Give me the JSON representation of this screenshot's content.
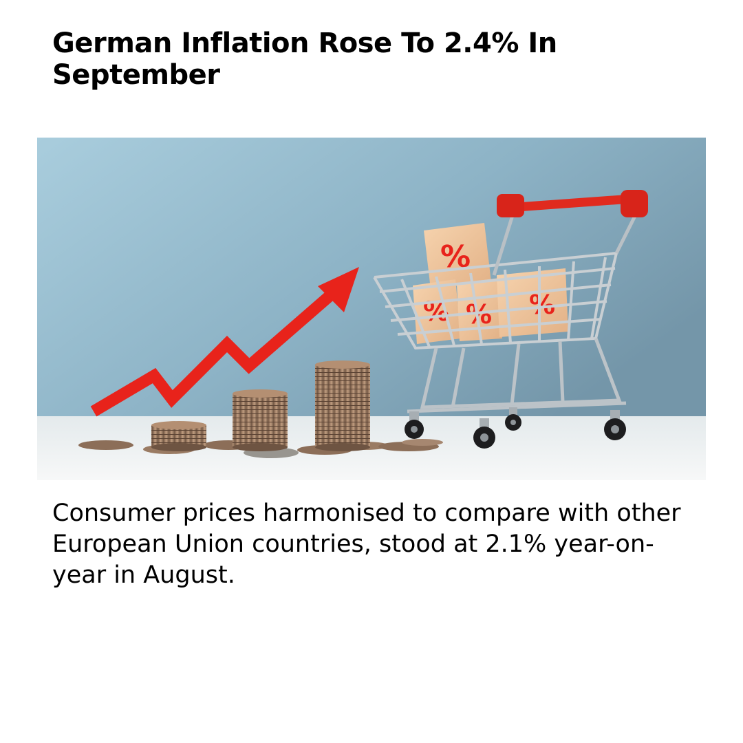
{
  "article": {
    "headline": "German Inflation Rose To 2.4% In September",
    "summary": "Consumer prices harmonised to compare with other European Union countries, stood at 2.1% year-on-year in August."
  },
  "hero_image": {
    "box_glyph": "%",
    "colors": {
      "sky_top": "#9fc4d6",
      "sky_bottom": "#7fa3b6",
      "table": "#eef2f3",
      "arrow": "#e8231b",
      "cart_handle": "#e02a1e",
      "box": "#f3c9a0",
      "coin": "#a3826a"
    }
  }
}
